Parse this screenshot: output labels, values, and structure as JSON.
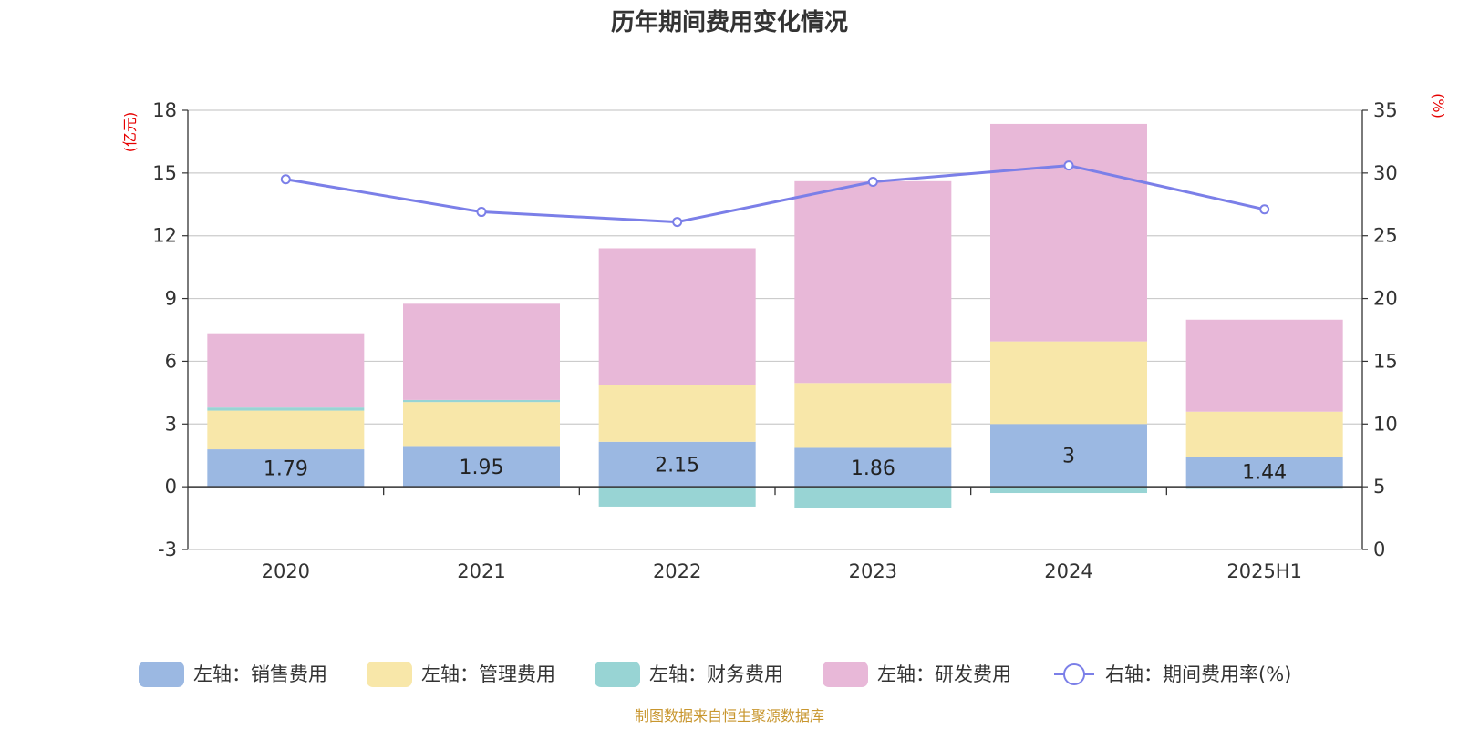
{
  "chart_data": {
    "type": "bar",
    "title": "历年期间费用变化情况",
    "categories": [
      "2020",
      "2021",
      "2022",
      "2023",
      "2024",
      "2025H1"
    ],
    "left_axis": {
      "unit_label": "(亿元)",
      "ylim": [
        -3,
        18
      ],
      "ticks": [
        -3,
        0,
        3,
        6,
        9,
        12,
        15,
        18
      ]
    },
    "right_axis": {
      "unit_label": "(%)",
      "ylim": [
        0,
        35
      ],
      "ticks": [
        0,
        5,
        10,
        15,
        20,
        25,
        30,
        35
      ]
    },
    "series": [
      {
        "name": "左轴：销售费用",
        "axis": "left",
        "stack": "main",
        "color": "#9bb8e2",
        "values": [
          1.79,
          1.95,
          2.15,
          1.86,
          3,
          1.44
        ],
        "labels": [
          "1.79",
          "1.95",
          "2.15",
          "1.86",
          "3",
          "1.44"
        ]
      },
      {
        "name": "左轴：管理费用",
        "axis": "left",
        "stack": "main",
        "color": "#f8e7a9",
        "values": [
          1.85,
          2.1,
          2.7,
          3.1,
          3.95,
          2.15
        ]
      },
      {
        "name": "左轴：财务费用",
        "axis": "left",
        "stack": "main",
        "color": "#98d4d4",
        "values": [
          0.15,
          0.1,
          -0.95,
          -1.0,
          -0.3,
          -0.1
        ]
      },
      {
        "name": "左轴：研发费用",
        "axis": "left",
        "stack": "main",
        "color": "#e8b8d8",
        "values": [
          3.55,
          4.6,
          6.55,
          9.65,
          10.4,
          4.4
        ]
      },
      {
        "name": "右轴：期间费用率(%)",
        "axis": "right",
        "type": "line",
        "color": "#7b7fe8",
        "values": [
          29.5,
          26.9,
          26.1,
          29.3,
          30.6,
          27.1
        ]
      }
    ],
    "legend_position": "bottom",
    "grid": true
  },
  "footer": {
    "source": "制图数据来自恒生聚源数据库"
  }
}
